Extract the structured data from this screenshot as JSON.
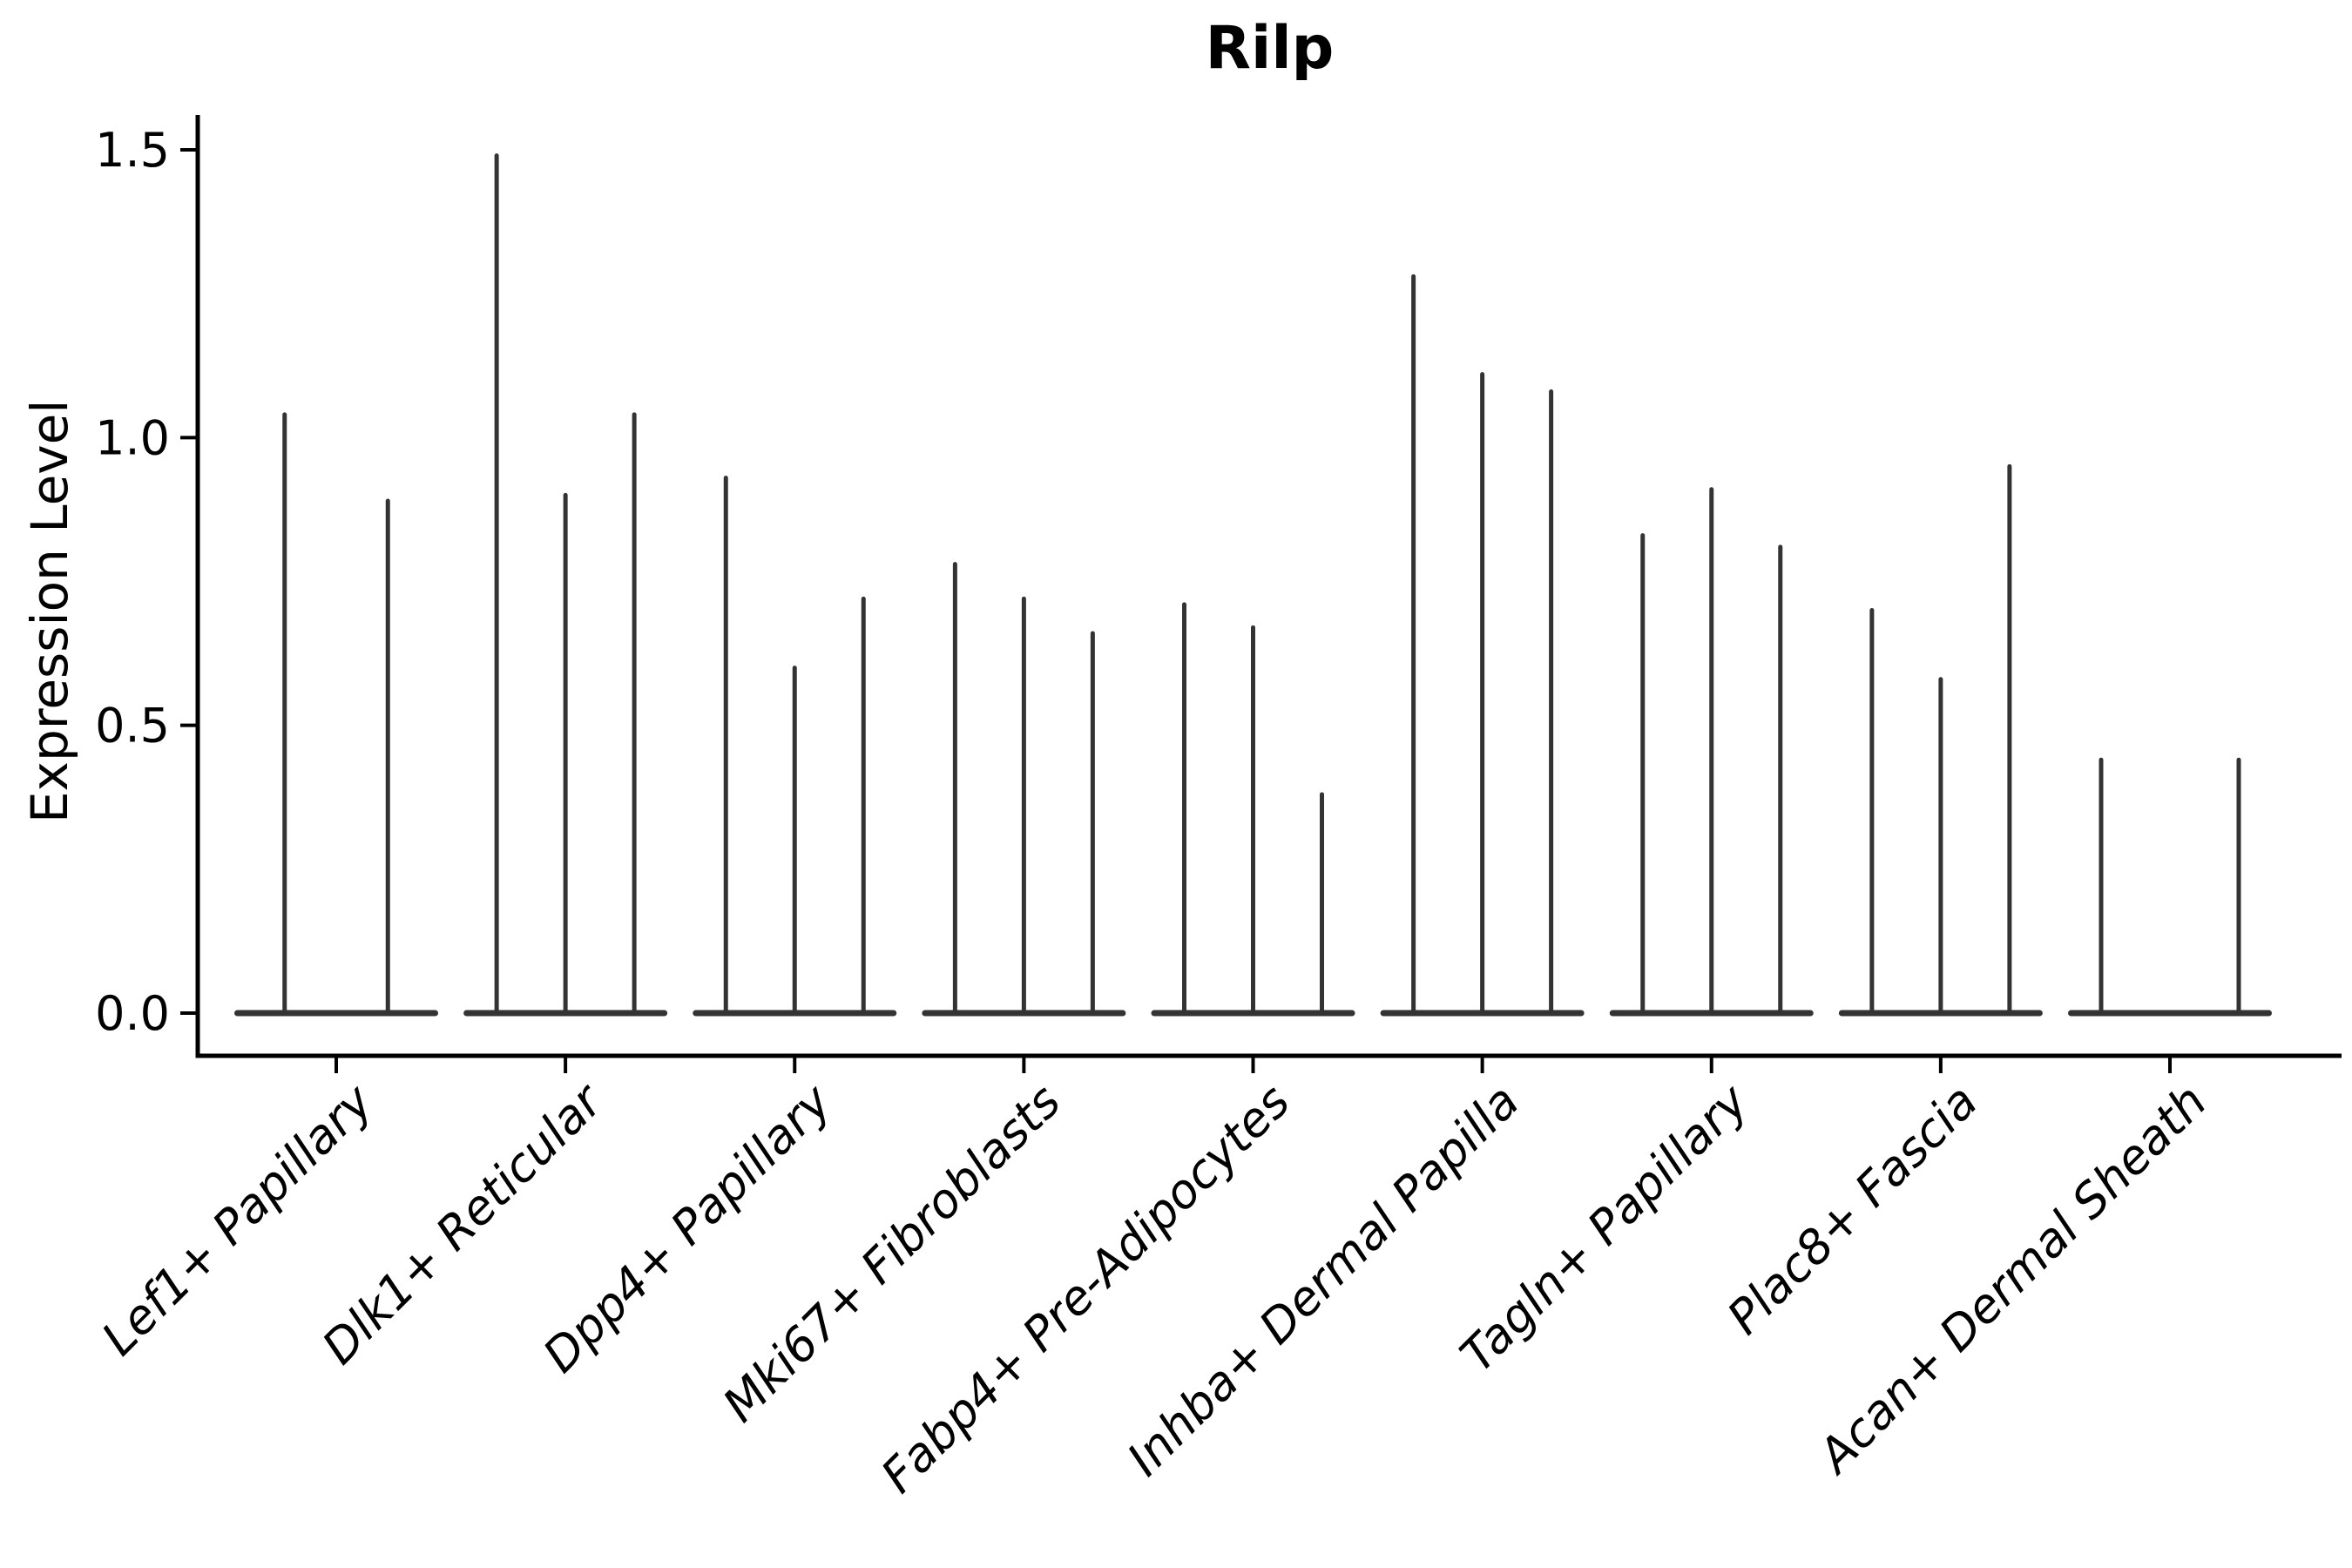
{
  "chart_data": {
    "type": "violin",
    "title": "Rilp",
    "ylabel": "Expression Level",
    "xlabel": "",
    "categories": [
      "Lef1+ Papillary",
      "Dlk1+ Reticular",
      "Dpp4+ Papillary",
      "Mki67+ Fibroblasts",
      "Fabp4+ Pre-Adipocytes",
      "Inhba+ Dermal Papilla",
      "Tagln+ Papillary",
      "Plac8+ Fascia",
      "Acan+ Dermal Sheath"
    ],
    "violin_max_values": [
      [
        1.04,
        0.89
      ],
      [
        1.49,
        0.9,
        1.04
      ],
      [
        0.93,
        0.6,
        0.72
      ],
      [
        0.78,
        0.72,
        0.66
      ],
      [
        0.71,
        0.67,
        0.38
      ],
      [
        1.28,
        1.11,
        1.08
      ],
      [
        0.83,
        0.91,
        0.81
      ],
      [
        0.7,
        0.58,
        0.95
      ],
      [
        0.44,
        0.0,
        0.44
      ]
    ],
    "series_note": "Split violin plot (2-3 thin violins per cell type); expression mass sits at 0 (flat base) with a needle-thin tail whose top equals the listed max expression value; a value of 0.0 means that violin is completely flat at zero.",
    "yticks": [
      0.0,
      0.5,
      1.0,
      1.5
    ],
    "ylim": [
      -0.075,
      1.57
    ],
    "grid": false,
    "legend_position": "none",
    "violin_color": "#333333",
    "axis_color": "#000000",
    "background_color": "#ffffff",
    "x_label_rotation_deg": 45
  }
}
